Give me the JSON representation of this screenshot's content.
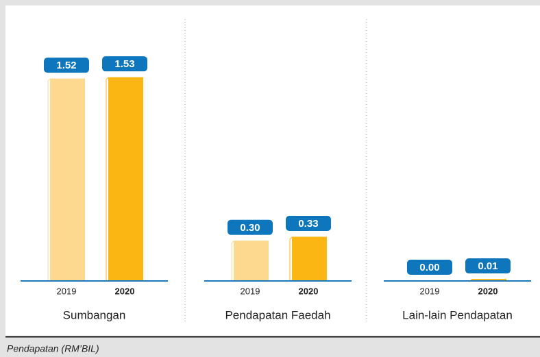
{
  "chart_data": [
    {
      "type": "bar",
      "title": "Sumbangan",
      "categories": [
        "2019",
        "2020"
      ],
      "values": [
        1.52,
        1.53
      ],
      "value_labels": [
        "1.52",
        "1.53"
      ],
      "colors": [
        "#fdd98f",
        "#fbb614"
      ]
    },
    {
      "type": "bar",
      "title": "Pendapatan Faedah",
      "categories": [
        "2019",
        "2020"
      ],
      "values": [
        0.3,
        0.33
      ],
      "value_labels": [
        "0.30",
        "0.33"
      ],
      "colors": [
        "#fdd98f",
        "#fbb614"
      ]
    },
    {
      "type": "bar",
      "title": "Lain-lain Pendapatan",
      "categories": [
        "2019",
        "2020"
      ],
      "values": [
        0.0,
        0.01
      ],
      "value_labels": [
        "0.00",
        "0.01"
      ],
      "colors": [
        "#fdd98f",
        "#fbb614"
      ]
    }
  ],
  "caption": "Pendapatan (RM’BIL)"
}
